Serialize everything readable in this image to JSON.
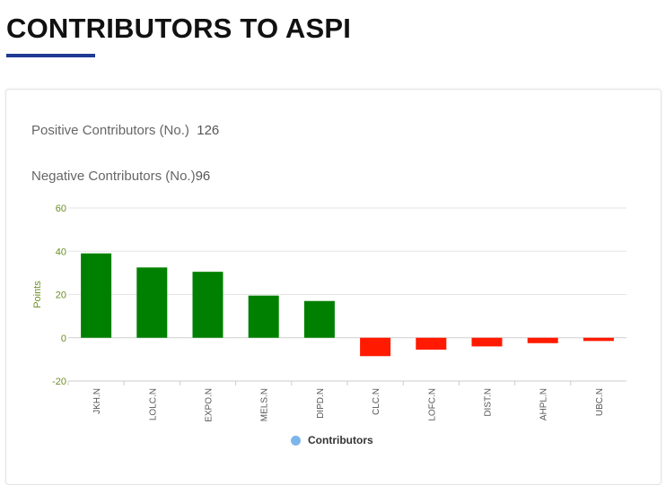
{
  "page": {
    "title": "CONTRIBUTORS TO ASPI"
  },
  "stats": {
    "positive_label": "Positive Contributors (No.)",
    "positive_value": "126",
    "negative_label": "Negative Contributors (No.)",
    "negative_value": "96"
  },
  "colors": {
    "positive": "#008000",
    "negative": "#ff1a00",
    "accent": "#1f3a93",
    "legend_marker": "#7cb5ec",
    "axis_text": "#6b8e23"
  },
  "chart_data": {
    "type": "bar",
    "categories": [
      "JKH.N",
      "LOLC.N",
      "EXPO.N",
      "MELS.N",
      "DIPD.N",
      "CLC.N",
      "LOFC.N",
      "DIST.N",
      "AHPL.N",
      "UBC.N"
    ],
    "series": [
      {
        "name": "Contributors",
        "values": [
          39,
          32.5,
          30.5,
          19.5,
          17,
          -8.5,
          -5.5,
          -4,
          -2.5,
          -1.5
        ]
      }
    ],
    "ylabel": "Points",
    "ylim": [
      -20,
      60
    ],
    "yticks": [
      -20,
      0,
      20,
      40,
      60
    ],
    "grid": true,
    "legend": "bottom-center"
  }
}
